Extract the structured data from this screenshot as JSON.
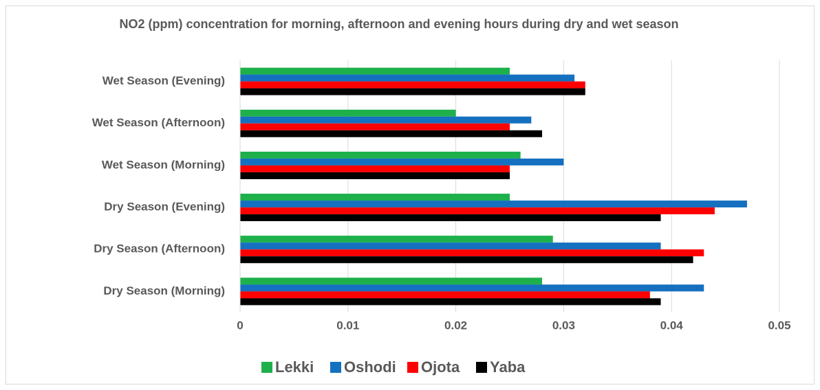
{
  "chart_data": {
    "type": "bar",
    "orientation": "horizontal",
    "title": "NO2 (ppm) concentration for morning, afternoon and evening hours during dry and wet season",
    "categories": [
      "Dry Season (Morning)",
      "Dry Season (Afternoon)",
      "Dry Season (Evening)",
      "Wet Season (Morning)",
      "Wet Season (Afternoon)",
      "Wet Season (Evening)"
    ],
    "series": [
      {
        "name": "Lekki",
        "color": "#1db04b",
        "values": [
          0.028,
          0.029,
          0.025,
          0.026,
          0.02,
          0.025
        ]
      },
      {
        "name": "Oshodi",
        "color": "#1570c0",
        "values": [
          0.043,
          0.039,
          0.047,
          0.03,
          0.027,
          0.031
        ]
      },
      {
        "name": "Ojota",
        "color": "#ff0000",
        "values": [
          0.038,
          0.043,
          0.044,
          0.025,
          0.025,
          0.032
        ]
      },
      {
        "name": "Yaba",
        "color": "#000000",
        "values": [
          0.039,
          0.042,
          0.039,
          0.025,
          0.028,
          0.032
        ]
      }
    ],
    "xlim": [
      0,
      0.05
    ],
    "xticks": [
      0,
      0.01,
      0.02,
      0.03,
      0.04,
      0.05
    ],
    "grid": true,
    "legend": "bottom"
  }
}
